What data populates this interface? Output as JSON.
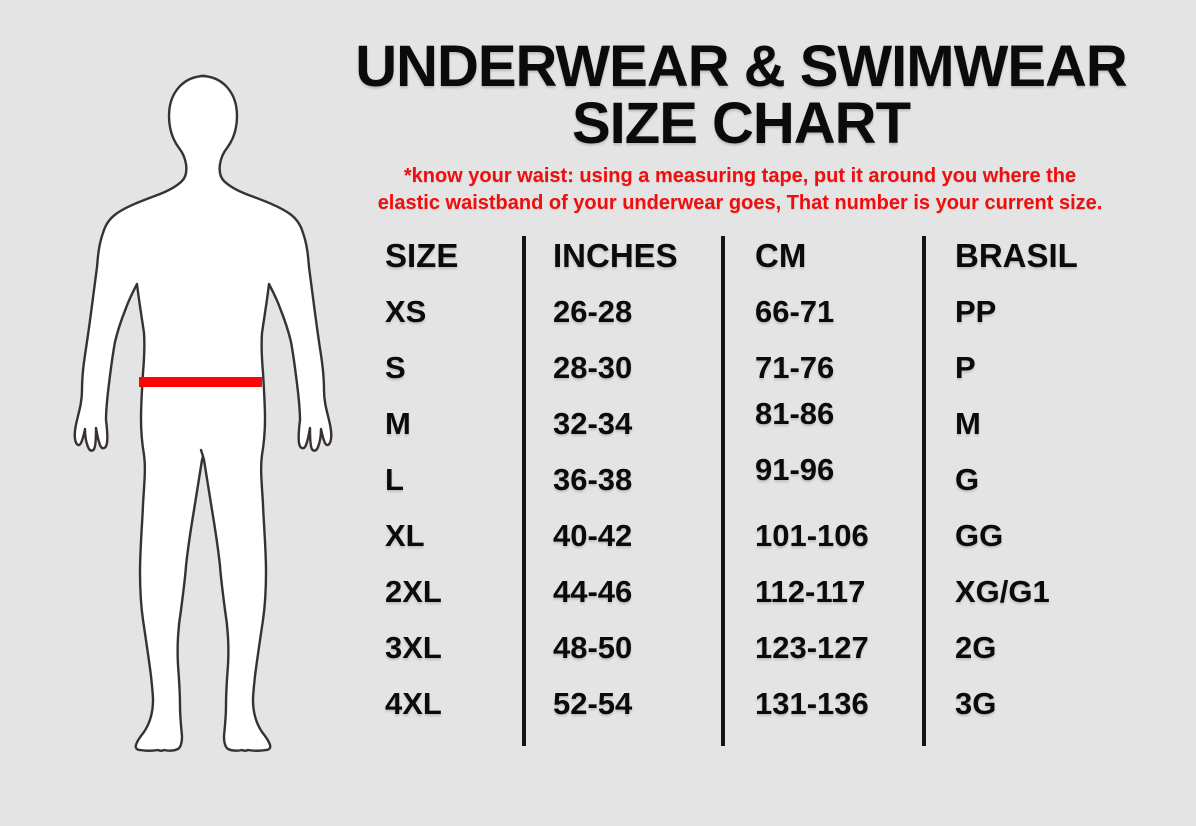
{
  "header": {
    "title_line1": "UNDERWEAR & SWIMWEAR",
    "title_line2": "SIZE CHART",
    "note_line1": "*know your waist: using a measuring tape, put it around you where the",
    "note_line2": "elastic waistband of your underwear goes, That number is your current size."
  },
  "figure": {
    "label": "male body silhouette with red waistband measurement line at the hips"
  },
  "colors": {
    "background": "#e4e4e4",
    "text": "#0b0b0b",
    "note_red": "#f20d0d",
    "waistband_red": "#fb0505",
    "divider_black": "#141414"
  },
  "chart_data": {
    "type": "table",
    "title": "UNDERWEAR & SWIMWEAR SIZE CHART",
    "columns": [
      "SIZE",
      "INCHES",
      "CM",
      "BRASIL"
    ],
    "rows": [
      [
        "XS",
        "26-28",
        "66-71",
        "PP"
      ],
      [
        "S",
        "28-30",
        "71-76",
        "P"
      ],
      [
        "M",
        "32-34",
        "81-86",
        "M"
      ],
      [
        "L",
        "36-38",
        "91-96",
        "G"
      ],
      [
        "XL",
        "40-42",
        "101-106",
        "GG"
      ],
      [
        "2XL",
        "44-46",
        "112-117",
        "XG/G1"
      ],
      [
        "3XL",
        "48-50",
        "123-127",
        "2G"
      ],
      [
        "4XL",
        "52-54",
        "131-136",
        "3G"
      ]
    ]
  }
}
